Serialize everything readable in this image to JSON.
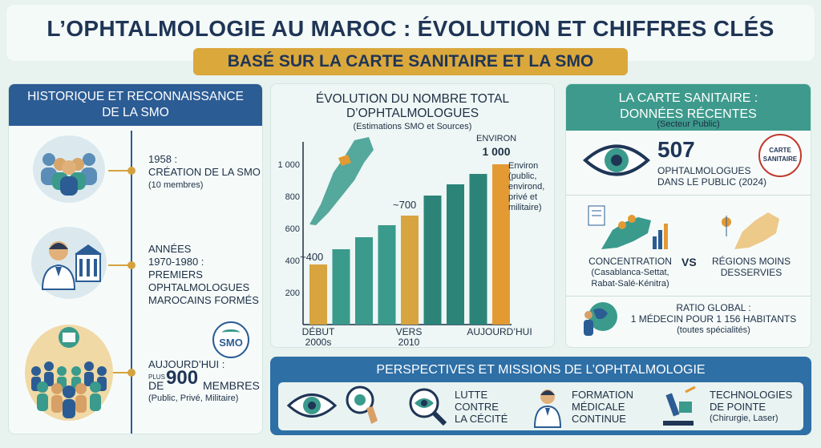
{
  "header": {
    "title": "L’OPHTALMOLOGIE AU MAROC : ÉVOLUTION ET CHIFFRES CLÉS",
    "subtitle": "BASÉ SUR LA CARTE SANITAIRE ET LA SMO"
  },
  "history": {
    "title_l1": "HISTORIQUE ET RECONNAISSANCE",
    "title_l2": "DE LA SMO",
    "events": [
      {
        "l1": "1958 :",
        "l2": "CRÉATION DE LA SMO",
        "l3": "(10 membres)"
      },
      {
        "l1": "ANNÉES",
        "l2": "1970-1980 :",
        "l3": "PREMIERS",
        "l4": "OPHTALMOLOGUES",
        "l5": "MAROCAINS FORMÉS"
      },
      {
        "l1": "AUJOURD’HUI :",
        "plus": "PLUS",
        "de": "DE",
        "num": "900",
        "members": "MEMBRES",
        "l3": "(Public, Privé, Militaire)"
      }
    ],
    "logo_text": "SMO"
  },
  "evolution": {
    "title_l1": "ÉVOLUTION DU NOMBRE TOTAL",
    "title_l2": "D’OPHTALMOLOGUES",
    "source": "(Estimations SMO et Sources)",
    "label_400": "~400",
    "label_700": "~700",
    "label_env_1": "ENVIRON",
    "label_env_2": "1 000",
    "note": [
      "Environ",
      "(public,",
      "environd,",
      "privé et",
      "militaire)"
    ],
    "x_labels": [
      {
        "l1": "DÉBUT",
        "l2": "2000s"
      },
      {
        "l1": "VERS",
        "l2": "2010"
      },
      {
        "l1": "AUJOURD’HUI",
        "l2": ""
      }
    ]
  },
  "chart_data": {
    "type": "bar",
    "title": "ÉVOLUTION DU NOMBRE TOTAL D’OPHTALMOLOGUES",
    "subtitle": "(Estimations SMO et Sources)",
    "values": [
      375,
      470,
      545,
      620,
      680,
      805,
      875,
      940,
      1000
    ],
    "ylim": [
      0,
      1100
    ],
    "yticks": [
      200,
      400,
      600,
      800,
      1000
    ],
    "ytick_labels": [
      "200",
      "400",
      "600",
      "800",
      "1 000"
    ],
    "highlight_index": [
      0,
      4,
      8
    ],
    "colors": {
      "teal": "#3a9a8c",
      "dark_teal": "#2c8479",
      "gold": "#d8a440",
      "orange": "#e39a33"
    }
  },
  "carte": {
    "title_l1": "LA CARTE SANITAIRE :",
    "title_l2": "DONNÉES RÉCENTES",
    "sector": "(Secteur Public)",
    "count": "507",
    "count_l1": "OPHTALMOLOGUES",
    "count_l2": "DANS LE PUBLIC (2024)",
    "stamp_l1": "CARTE",
    "stamp_l2": "SANITAIRE",
    "concentration": "CONCENTRATION",
    "conc_l2": "(Casablanca-Settat,",
    "conc_l3": "Rabat-Salé-Kénitra)",
    "vs": "VS",
    "regions_l1": "RÉGIONS MOINS",
    "regions_l2": "DESSERVIES",
    "ratio_l1": "RATIO GLOBAL :",
    "ratio_l2": "1 MÉDECIN POUR 1 156 HABITANTS",
    "ratio_l3": "(toutes spécialités)"
  },
  "perspectives": {
    "title": "PERSPECTIVES ET MISSIONS DE L’OPHTALMOLOGIE",
    "items": [
      {
        "l1": "LUTTE",
        "l2": "CONTRE",
        "l3": "LA CÉCITÉ"
      },
      {
        "l1": "FORMATION",
        "l2": "MÉDICALE",
        "l3": "CONTINUE"
      },
      {
        "l1": "TECHNOLOGIES",
        "l2": "DE POINTE",
        "l3": "(Chirurgie, Laser)"
      }
    ]
  }
}
